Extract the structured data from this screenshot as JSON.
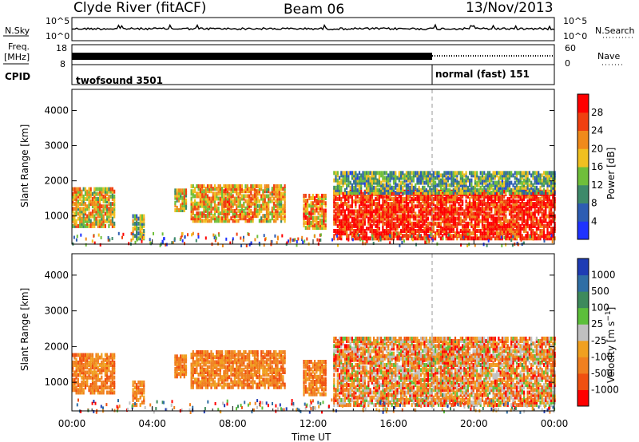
{
  "header": {
    "station": "Clyde River (fitACF)",
    "beam": "Beam 06",
    "date": "13/Nov/2013"
  },
  "top_panels": {
    "nsky_label": "N.Sky",
    "nsky_ticks": [
      "10^5",
      "10^0"
    ],
    "nsearch_label": "N.Search",
    "nsearch_ticks": [
      "10^5",
      "10^0"
    ],
    "freq_label_1": "Freq.",
    "freq_label_2": "[MHz]",
    "freq_ticks": [
      "18",
      "8"
    ],
    "nave_label": "Nave",
    "nave_ticks": [
      "60",
      "0"
    ],
    "cpid_label": "CPID",
    "cpid_segments": [
      "twofsound 3501",
      "normal (fast) 151"
    ]
  },
  "chart_data": [
    {
      "type": "heatmap",
      "panel": "power",
      "ylabel": "Slant Range [km]",
      "xlabel": "",
      "ylim": [
        200,
        4600
      ],
      "yticks": [
        "1000",
        "2000",
        "3000",
        "4000"
      ],
      "colorbar_label": "Power [dB]",
      "colorbar_ticks": [
        "4",
        "8",
        "12",
        "16",
        "20",
        "24",
        "28"
      ],
      "colorbar_colors": [
        "#1f33ff",
        "#2d5db3",
        "#3e8a6a",
        "#6fbf3a",
        "#f0c020",
        "#f08a1a",
        "#f04010",
        "#ff0000"
      ],
      "clusters": [
        {
          "t0": 0.0,
          "t1": 2.1,
          "r0": 700,
          "r1": 1800,
          "level": 0.6
        },
        {
          "t0": 3.0,
          "t1": 3.6,
          "r0": 350,
          "r1": 1000,
          "level": 0.4
        },
        {
          "t0": 5.1,
          "t1": 5.7,
          "r0": 1150,
          "r1": 1750,
          "level": 0.55
        },
        {
          "t0": 5.9,
          "t1": 9.2,
          "r0": 850,
          "r1": 1850,
          "level": 0.65
        },
        {
          "t0": 9.2,
          "t1": 10.6,
          "r0": 850,
          "r1": 1850,
          "level": 0.6
        },
        {
          "t0": 11.5,
          "t1": 12.6,
          "r0": 650,
          "r1": 1600,
          "level": 0.7
        },
        {
          "t0": 13.0,
          "t1": 24.0,
          "r0": 350,
          "r1": 1750,
          "level": 0.95
        },
        {
          "t0": 13.0,
          "t1": 24.0,
          "r0": 1650,
          "r1": 2250,
          "level": 0.35
        }
      ]
    },
    {
      "type": "heatmap",
      "panel": "velocity",
      "ylabel": "Slant Range [km]",
      "xlabel": "Time UT",
      "ylim": [
        200,
        4600
      ],
      "yticks": [
        "1000",
        "2000",
        "3000",
        "4000"
      ],
      "colorbar_label": "Velocity [m s^-1]",
      "colorbar_ticks": [
        "1000",
        "500",
        "100",
        "25",
        "-25",
        "-100",
        "-500",
        "-1000"
      ],
      "colorbar_colors": [
        "#1e3cb4",
        "#2f6ea5",
        "#3d8a5c",
        "#5cbf3a",
        "#c0c0c0",
        "#f0a020",
        "#f08020",
        "#f05010",
        "#ff0000"
      ],
      "clusters": [
        {
          "t0": 0.0,
          "t1": 2.1,
          "r0": 700,
          "r1": 1800,
          "level": 0.3
        },
        {
          "t0": 3.0,
          "t1": 3.6,
          "r0": 350,
          "r1": 1000,
          "level": 0.2
        },
        {
          "t0": 5.1,
          "t1": 5.7,
          "r0": 1150,
          "r1": 1750,
          "level": 0.3
        },
        {
          "t0": 5.9,
          "t1": 9.2,
          "r0": 850,
          "r1": 1850,
          "level": 0.3
        },
        {
          "t0": 9.2,
          "t1": 10.6,
          "r0": 850,
          "r1": 1850,
          "level": 0.3
        },
        {
          "t0": 11.5,
          "t1": 12.6,
          "r0": 650,
          "r1": 1600,
          "level": 0.3
        },
        {
          "t0": 13.0,
          "t1": 24.0,
          "r0": 350,
          "r1": 1750,
          "level": 0.5
        },
        {
          "t0": 13.0,
          "t1": 24.0,
          "r0": 1650,
          "r1": 2250,
          "level": 0.5
        }
      ]
    }
  ],
  "x_axis": {
    "label": "Time UT",
    "ticks": [
      "00:00",
      "04:00",
      "08:00",
      "12:00",
      "16:00",
      "20:00",
      "00:00"
    ],
    "range_hours": [
      0,
      24
    ]
  },
  "mode_change_hour": 18.0
}
